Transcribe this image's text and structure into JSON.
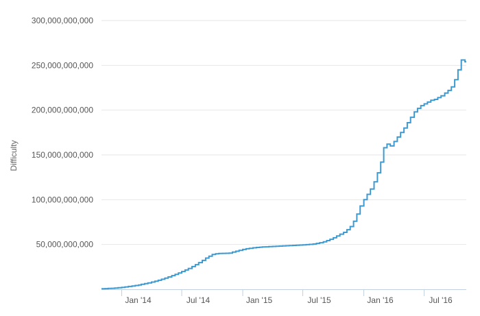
{
  "chart_data": {
    "type": "line",
    "step": true,
    "title": "",
    "xlabel": "",
    "ylabel": "Difficulty",
    "ylim": [
      0,
      300000000000
    ],
    "xlim": [
      "2013-11-01",
      "2016-11-05"
    ],
    "grid": true,
    "legend": "none",
    "line_color": "#3d9ad1",
    "y_ticks": [
      {
        "value": 50000000000,
        "label": "50,000,000,000"
      },
      {
        "value": 100000000000,
        "label": "100,000,000,000"
      },
      {
        "value": 150000000000,
        "label": "150,000,000,000"
      },
      {
        "value": 200000000000,
        "label": "200,000,000,000"
      },
      {
        "value": 250000000000,
        "label": "250,000,000,000"
      },
      {
        "value": 300000000000,
        "label": "300,000,000,000"
      }
    ],
    "x_ticks": [
      {
        "date": "2014-01-01",
        "label": "Jan '14"
      },
      {
        "date": "2014-07-01",
        "label": "Jul '14"
      },
      {
        "date": "2015-01-01",
        "label": "Jan '15"
      },
      {
        "date": "2015-07-01",
        "label": "Jul '15"
      },
      {
        "date": "2016-01-01",
        "label": "Jan '16"
      },
      {
        "date": "2016-07-01",
        "label": "Jul '16"
      }
    ],
    "series": [
      {
        "x": [
          "2013-11-01",
          "2013-11-11",
          "2013-11-21",
          "2013-12-01",
          "2013-12-11",
          "2013-12-21",
          "2014-01-01",
          "2014-01-11",
          "2014-01-21",
          "2014-02-01",
          "2014-02-11",
          "2014-02-21",
          "2014-03-01",
          "2014-03-11",
          "2014-03-21",
          "2014-04-01",
          "2014-04-11",
          "2014-04-21",
          "2014-05-01",
          "2014-05-11",
          "2014-05-21",
          "2014-06-01",
          "2014-06-11",
          "2014-06-21",
          "2014-07-01",
          "2014-07-11",
          "2014-07-21",
          "2014-08-01",
          "2014-08-11",
          "2014-08-21",
          "2014-09-01",
          "2014-09-11",
          "2014-09-21",
          "2014-10-01",
          "2014-10-11",
          "2014-10-21",
          "2014-11-01",
          "2014-11-11",
          "2014-11-21",
          "2014-12-01",
          "2014-12-11",
          "2014-12-21",
          "2015-01-01",
          "2015-01-11",
          "2015-01-21",
          "2015-02-01",
          "2015-02-11",
          "2015-02-21",
          "2015-03-01",
          "2015-03-11",
          "2015-03-21",
          "2015-04-01",
          "2015-04-11",
          "2015-04-21",
          "2015-05-01",
          "2015-05-11",
          "2015-05-21",
          "2015-06-01",
          "2015-06-11",
          "2015-06-21",
          "2015-07-01",
          "2015-07-11",
          "2015-07-21",
          "2015-08-01",
          "2015-08-11",
          "2015-08-21",
          "2015-09-01",
          "2015-09-11",
          "2015-09-21",
          "2015-10-01",
          "2015-10-11",
          "2015-10-21",
          "2015-11-01",
          "2015-11-11",
          "2015-11-21",
          "2015-12-01",
          "2015-12-11",
          "2015-12-21",
          "2016-01-01",
          "2016-01-11",
          "2016-01-21",
          "2016-02-01",
          "2016-02-11",
          "2016-02-21",
          "2016-03-01",
          "2016-03-11",
          "2016-03-21",
          "2016-04-01",
          "2016-04-11",
          "2016-04-21",
          "2016-05-01",
          "2016-05-11",
          "2016-05-21",
          "2016-06-01",
          "2016-06-11",
          "2016-06-21",
          "2016-07-01",
          "2016-07-11",
          "2016-07-21",
          "2016-08-01",
          "2016-08-11",
          "2016-08-21",
          "2016-09-01",
          "2016-09-11",
          "2016-09-21",
          "2016-10-01",
          "2016-10-11",
          "2016-10-21",
          "2016-11-01"
        ],
        "values": [
          0.5,
          0.7,
          0.9,
          1.1,
          1.4,
          1.7,
          2.1,
          2.6,
          3.1,
          3.6,
          4.2,
          4.8,
          5.5,
          6.3,
          7.1,
          8.0,
          9.0,
          10.0,
          11.2,
          12.5,
          13.8,
          15.2,
          16.7,
          18.2,
          19.8,
          21.5,
          23.3,
          25.3,
          27.5,
          29.8,
          32.2,
          34.8,
          37.0,
          38.8,
          39.6,
          40.0,
          40.1,
          40.2,
          40.3,
          41.5,
          42.5,
          43.5,
          44.5,
          45.2,
          45.8,
          46.3,
          46.7,
          47.0,
          47.2,
          47.4,
          47.6,
          47.8,
          48.0,
          48.2,
          48.4,
          48.6,
          48.8,
          49.0,
          49.2,
          49.4,
          49.6,
          49.8,
          50.1,
          50.5,
          51.2,
          52.0,
          53.0,
          54.3,
          55.8,
          57.5,
          59.5,
          61.5,
          63.5,
          66.5,
          70.0,
          76.0,
          84.0,
          93.0,
          100.0,
          106.0,
          112.0,
          120.0,
          130.0,
          142.0,
          158.0,
          162.0,
          160.0,
          165.0,
          170.0,
          175.0,
          180.0,
          186.0,
          192.0,
          198.0,
          202.0,
          205.0,
          207.0,
          209.0,
          211.0,
          212.0,
          214.0,
          216.0,
          219.0,
          222.0,
          226.0,
          234.0,
          245.0,
          256.0,
          254.0
        ]
      }
    ]
  }
}
